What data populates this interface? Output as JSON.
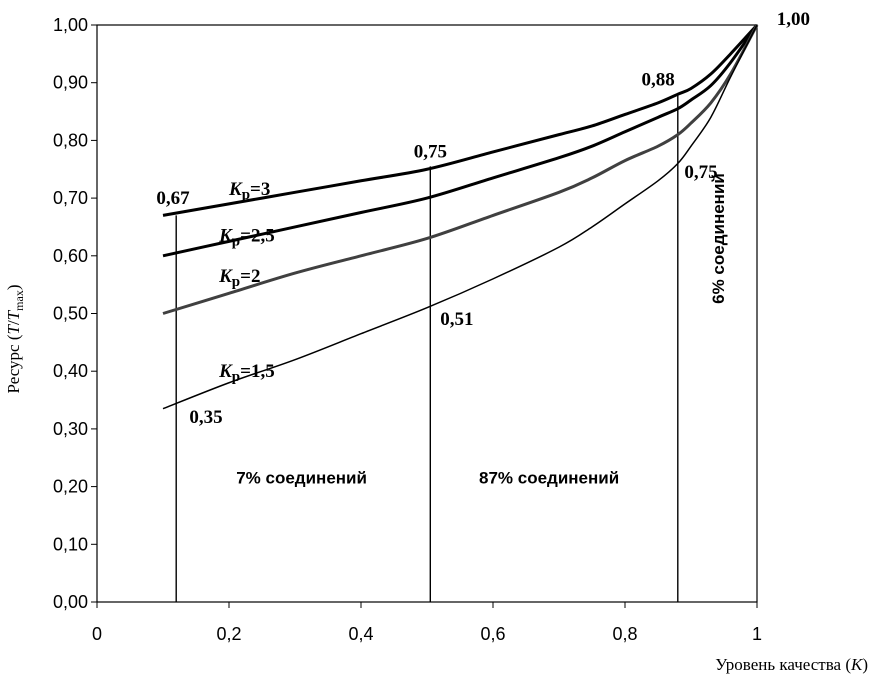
{
  "chart_data": {
    "type": "line",
    "xlabel": "Уровень качества (K)",
    "ylabel": "Ресурс (T/T max)",
    "ylabel_parts": {
      "a": "Ресурс (",
      "b": "T",
      "c": "/",
      "d": "T",
      "sub": "max",
      "e": ")"
    },
    "xlabel_parts": {
      "a": "Уровень качества (",
      "b": "K",
      "c": ")"
    },
    "xlim": [
      0,
      1
    ],
    "ylim": [
      0,
      1
    ],
    "x_ticks": [
      "0",
      "0,2",
      "0,4",
      "0,6",
      "0,8",
      "1"
    ],
    "y_ticks": [
      "0,00",
      "0,10",
      "0,20",
      "0,30",
      "0,40",
      "0,50",
      "0,60",
      "0,70",
      "0,80",
      "0,90",
      "1,00"
    ],
    "series": [
      {
        "name": "Kр=3",
        "label_k": "K",
        "label_sub": "р",
        "label_rest": "=3",
        "color": "#000000",
        "width": 3,
        "x": [
          0.1,
          0.2,
          0.3,
          0.4,
          0.5,
          0.6,
          0.7,
          0.75,
          0.8,
          0.85,
          0.88,
          0.9,
          0.93,
          0.96,
          1.0
        ],
        "y": [
          0.67,
          0.69,
          0.71,
          0.73,
          0.75,
          0.78,
          0.81,
          0.825,
          0.845,
          0.865,
          0.88,
          0.89,
          0.915,
          0.95,
          1.0
        ]
      },
      {
        "name": "Kр=2,5",
        "label_k": "K",
        "label_sub": "р",
        "label_rest": "=2,5",
        "color": "#000000",
        "width": 3,
        "x": [
          0.1,
          0.2,
          0.3,
          0.4,
          0.5,
          0.6,
          0.7,
          0.75,
          0.8,
          0.85,
          0.88,
          0.9,
          0.93,
          0.96,
          1.0
        ],
        "y": [
          0.6,
          0.625,
          0.65,
          0.675,
          0.7,
          0.735,
          0.77,
          0.79,
          0.815,
          0.84,
          0.855,
          0.87,
          0.895,
          0.935,
          1.0
        ]
      },
      {
        "name": "Kр=2",
        "label_k": "K",
        "label_sub": "р",
        "label_rest": "=2",
        "color": "#404040",
        "width": 3,
        "x": [
          0.1,
          0.2,
          0.3,
          0.4,
          0.5,
          0.6,
          0.7,
          0.75,
          0.8,
          0.85,
          0.88,
          0.9,
          0.93,
          0.96,
          1.0
        ],
        "y": [
          0.5,
          0.535,
          0.57,
          0.6,
          0.63,
          0.67,
          0.71,
          0.735,
          0.765,
          0.79,
          0.81,
          0.83,
          0.865,
          0.915,
          1.0
        ]
      },
      {
        "name": "Kр=1,5",
        "label_k": "K",
        "label_sub": "р",
        "label_rest": "=1,5",
        "color": "#000000",
        "width": 1.5,
        "x": [
          0.1,
          0.2,
          0.3,
          0.4,
          0.5,
          0.6,
          0.7,
          0.75,
          0.8,
          0.85,
          0.88,
          0.9,
          0.93,
          0.96,
          1.0
        ],
        "y": [
          0.335,
          0.38,
          0.42,
          0.465,
          0.51,
          0.56,
          0.615,
          0.65,
          0.69,
          0.73,
          0.76,
          0.79,
          0.84,
          0.91,
          1.0
        ]
      }
    ],
    "vertical_lines": [
      {
        "name": "boundary-low",
        "x": 0.12,
        "y_top": 0.67
      },
      {
        "name": "boundary-mid",
        "x": 0.505,
        "y_top": 0.755
      },
      {
        "name": "boundary-high",
        "x": 0.88,
        "y_top": 0.88
      }
    ],
    "value_labels": [
      {
        "name": "label-067",
        "text": "0,67",
        "x": 0.09,
        "y": 0.69,
        "anchor": "start"
      },
      {
        "name": "label-075-mid",
        "text": "0,75",
        "x": 0.48,
        "y": 0.77,
        "anchor": "start"
      },
      {
        "name": "label-088",
        "text": "0,88",
        "x": 0.825,
        "y": 0.895,
        "anchor": "start"
      },
      {
        "name": "label-100",
        "text": "1,00",
        "x": 1.03,
        "y": 1.0,
        "anchor": "start"
      },
      {
        "name": "label-075-right",
        "text": "0,75",
        "x": 0.89,
        "y": 0.735,
        "anchor": "start"
      },
      {
        "name": "label-051",
        "text": "0,51",
        "x": 0.52,
        "y": 0.48,
        "anchor": "start"
      },
      {
        "name": "label-035",
        "text": "0,35",
        "x": 0.14,
        "y": 0.31,
        "anchor": "start"
      }
    ],
    "series_labels": [
      {
        "series": 0,
        "x": 0.2,
        "y": 0.705
      },
      {
        "series": 1,
        "x": 0.185,
        "y": 0.625
      },
      {
        "series": 2,
        "x": 0.185,
        "y": 0.555
      },
      {
        "series": 3,
        "x": 0.185,
        "y": 0.39
      }
    ],
    "zone_labels": [
      {
        "name": "zone-low",
        "text": "7% соединений",
        "x": 0.31,
        "y": 0.205,
        "rotate": false
      },
      {
        "name": "zone-mid",
        "text": "87% соединений",
        "x": 0.685,
        "y": 0.205,
        "rotate": false
      },
      {
        "name": "zone-high",
        "text": "6% соединений",
        "x": 0.95,
        "y": 0.63,
        "rotate": true
      }
    ]
  }
}
